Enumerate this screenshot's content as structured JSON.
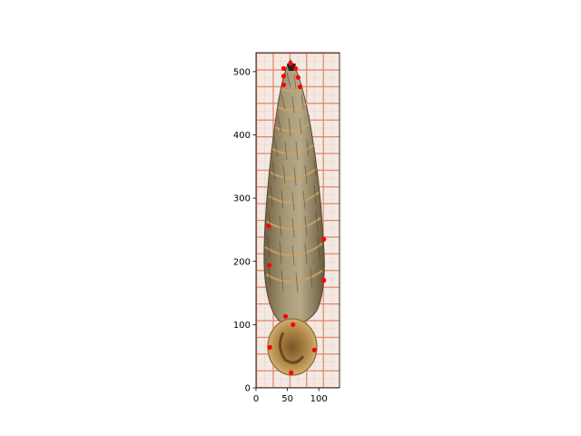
{
  "chart_data": {
    "type": "scatter",
    "title": "",
    "xlabel": "",
    "ylabel": "",
    "xlim": [
      0,
      133
    ],
    "ylim": [
      0,
      530
    ],
    "y_inverted": false,
    "grid": false,
    "legend": "none",
    "x_ticks": [
      0,
      50,
      100
    ],
    "y_ticks": [
      0,
      100,
      200,
      300,
      400,
      500
    ],
    "x_tick_labels": [
      "0",
      "50",
      "100"
    ],
    "y_tick_labels": [
      "0",
      "100",
      "200",
      "300",
      "400",
      "500"
    ],
    "background_image": "photograph of an elongated spiral snail shell on orange millimetre grid paper, apex at the top and aperture at the bottom",
    "series": [
      {
        "marker": "circle",
        "color": "#ff0000",
        "x": [
          55,
          44,
          63,
          44,
          67,
          44,
          70,
          20,
          21,
          108,
          108,
          47,
          59,
          22,
          93,
          56
        ],
        "y": [
          513,
          505,
          505,
          493,
          491,
          479,
          476,
          256,
          194,
          235,
          170,
          113,
          100,
          64,
          60,
          24
        ]
      }
    ]
  },
  "colors": {
    "marker": "#ff0000",
    "grid_paper_line": "#e89a80",
    "grid_paper_background": "#f3e9e3",
    "shell_main": "#9a8a66",
    "shell_dark": "#5e4c2e",
    "shell_band": "#c9a46c",
    "aperture": "#a67c3e"
  }
}
